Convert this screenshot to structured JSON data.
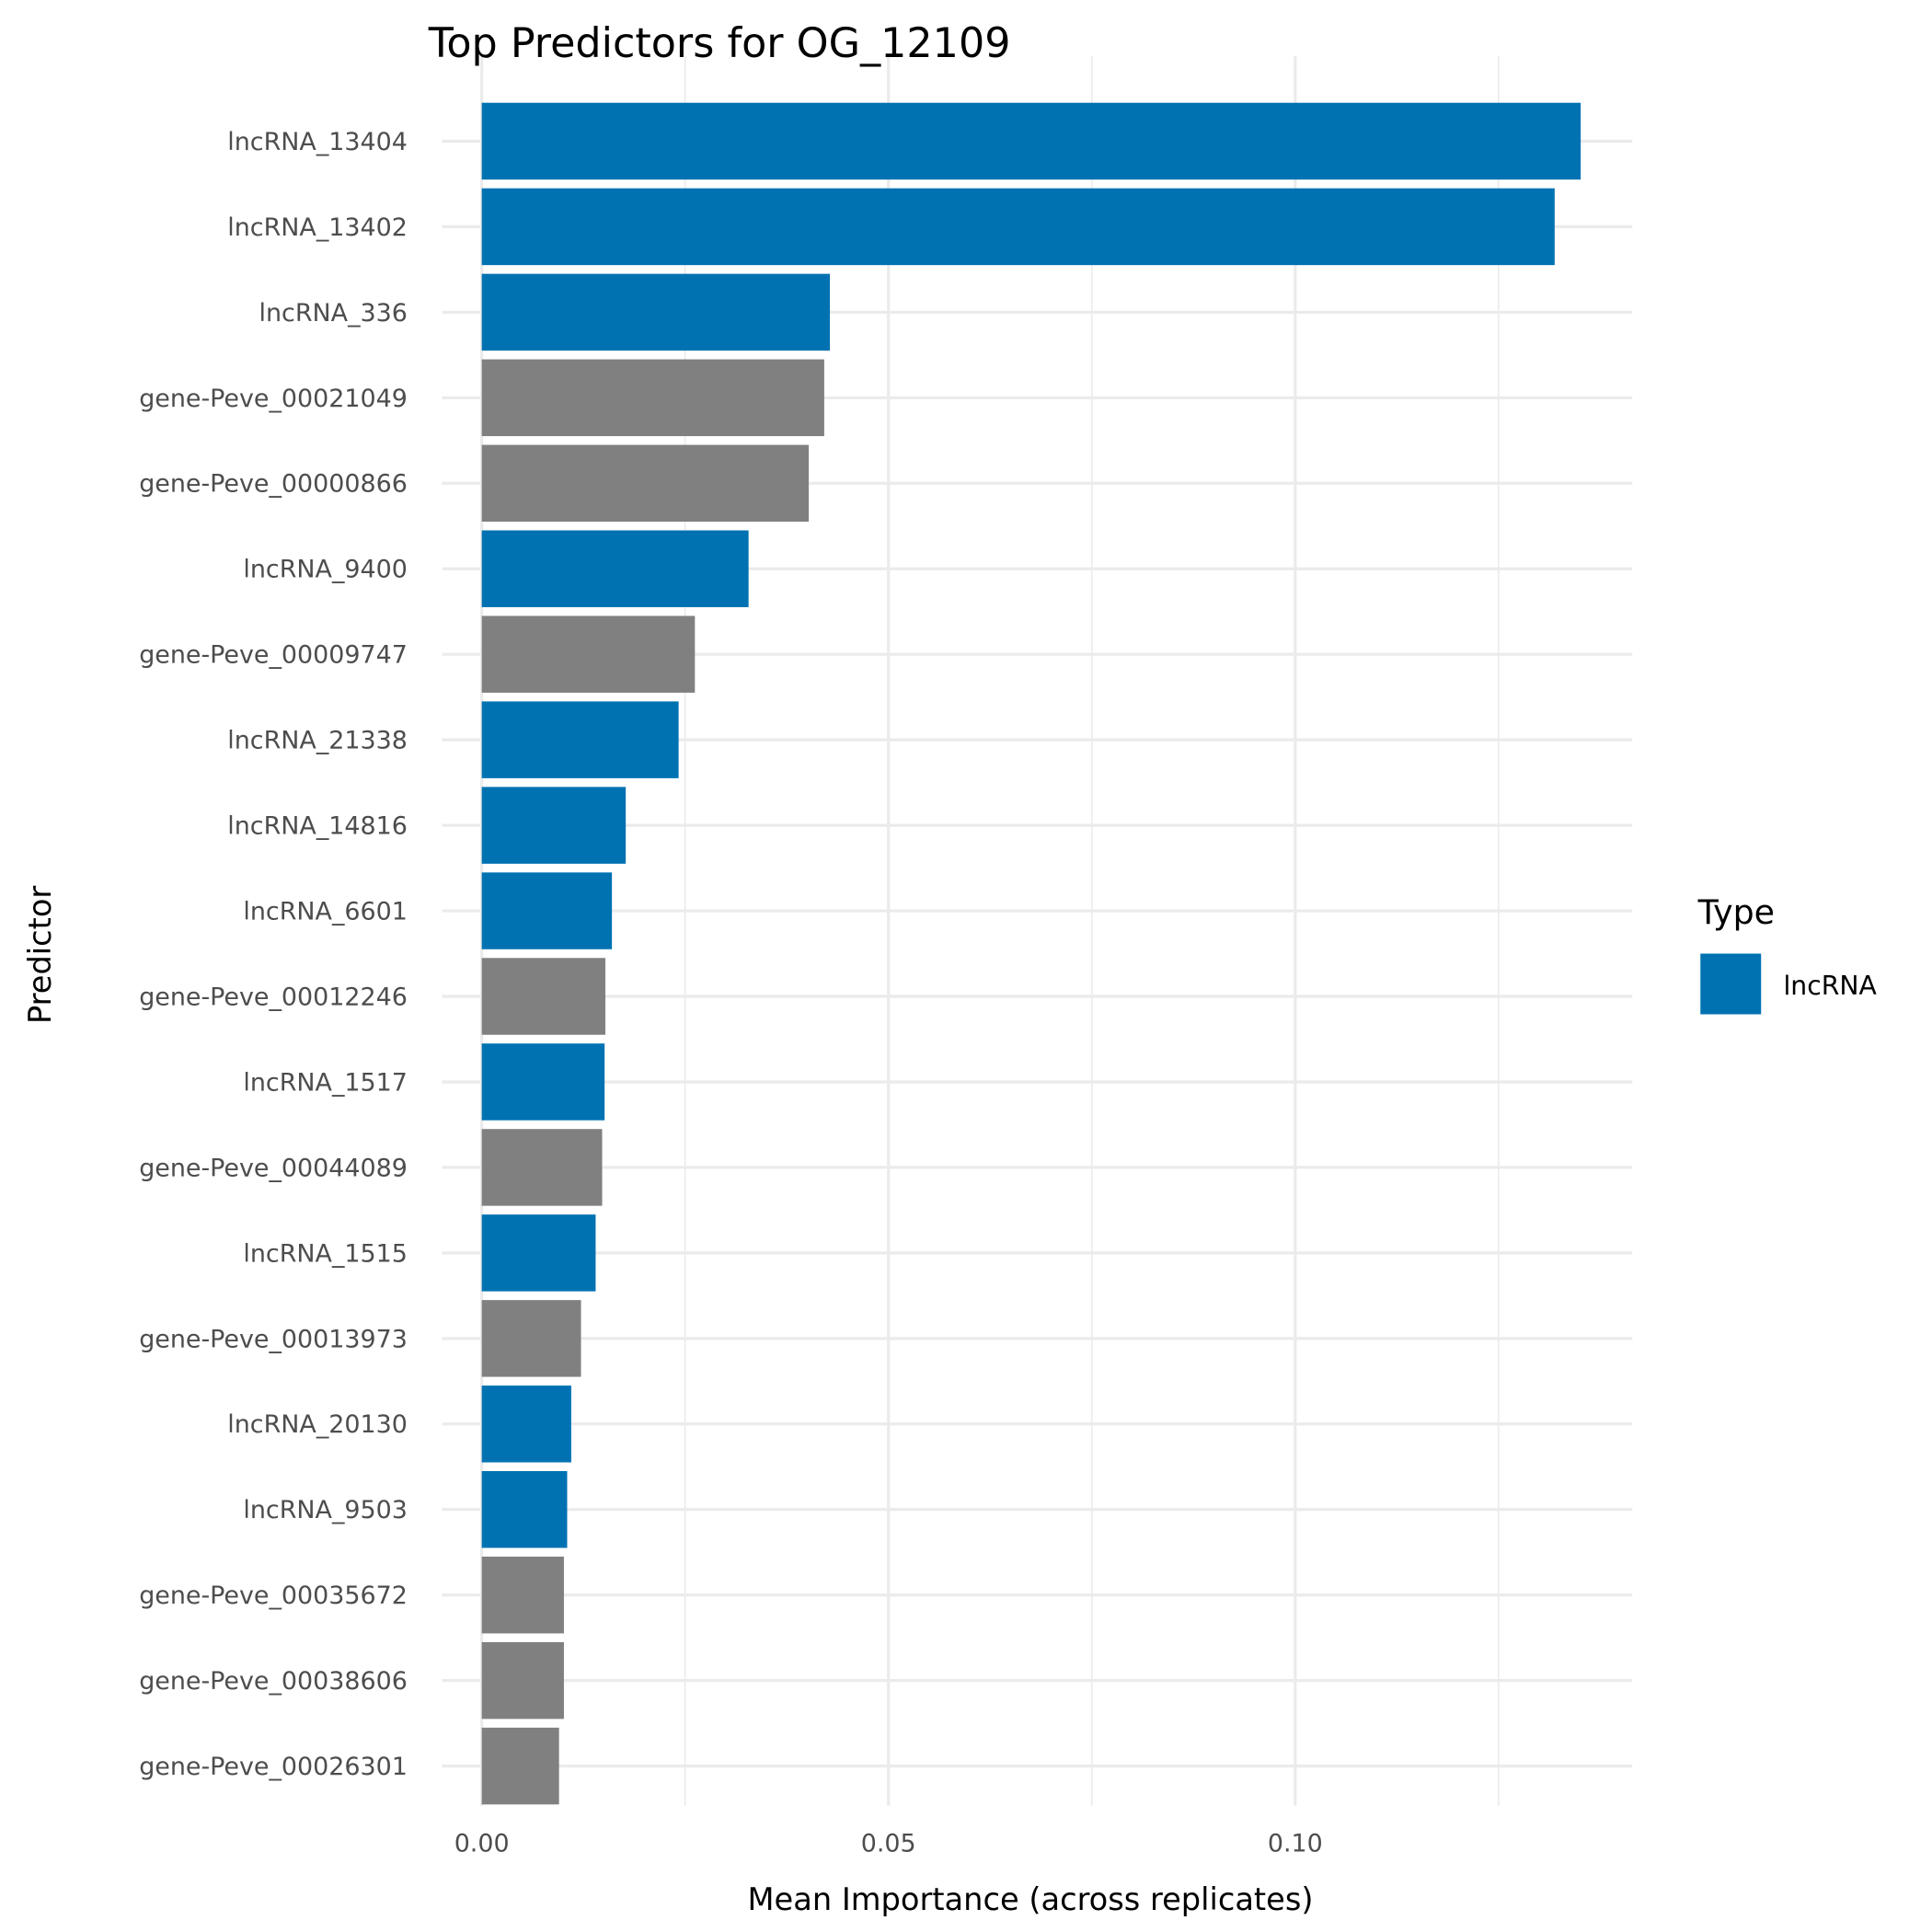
{
  "chart_data": {
    "type": "bar",
    "orientation": "horizontal",
    "title": "Top Predictors for OG_12109",
    "xlabel": "Mean Importance (across replicates)",
    "ylabel": "Predictor",
    "xlim": [
      0,
      0.142
    ],
    "xticks": [
      0.0,
      0.05,
      0.1
    ],
    "xtick_labels": [
      "0.00",
      "0.05",
      "0.10"
    ],
    "grid": true,
    "legend": {
      "title": "Type",
      "placement": "right",
      "entries": [
        {
          "label": "lncRNA",
          "color": "#0072B2"
        }
      ]
    },
    "categories": [
      "lncRNA_13404",
      "lncRNA_13402",
      "lncRNA_336",
      "gene-Peve_00021049",
      "gene-Peve_00000866",
      "lncRNA_9400",
      "gene-Peve_00009747",
      "lncRNA_21338",
      "lncRNA_14816",
      "lncRNA_6601",
      "gene-Peve_00012246",
      "lncRNA_1517",
      "gene-Peve_00044089",
      "lncRNA_1515",
      "gene-Peve_00013973",
      "lncRNA_20130",
      "lncRNA_9503",
      "gene-Peve_00035672",
      "gene-Peve_00038606",
      "gene-Peve_00026301"
    ],
    "values": [
      0.1351,
      0.1319,
      0.0428,
      0.0421,
      0.0402,
      0.0328,
      0.0262,
      0.0242,
      0.0177,
      0.016,
      0.0152,
      0.0151,
      0.0148,
      0.014,
      0.0122,
      0.011,
      0.0105,
      0.0101,
      0.0101,
      0.0095
    ],
    "types": [
      "lncRNA",
      "lncRNA",
      "lncRNA",
      "gene",
      "gene",
      "lncRNA",
      "gene",
      "lncRNA",
      "lncRNA",
      "lncRNA",
      "gene",
      "lncRNA",
      "gene",
      "lncRNA",
      "gene",
      "lncRNA",
      "lncRNA",
      "gene",
      "gene",
      "gene"
    ],
    "colors": {
      "lncRNA": "#0072B2",
      "gene": "#808080"
    }
  }
}
